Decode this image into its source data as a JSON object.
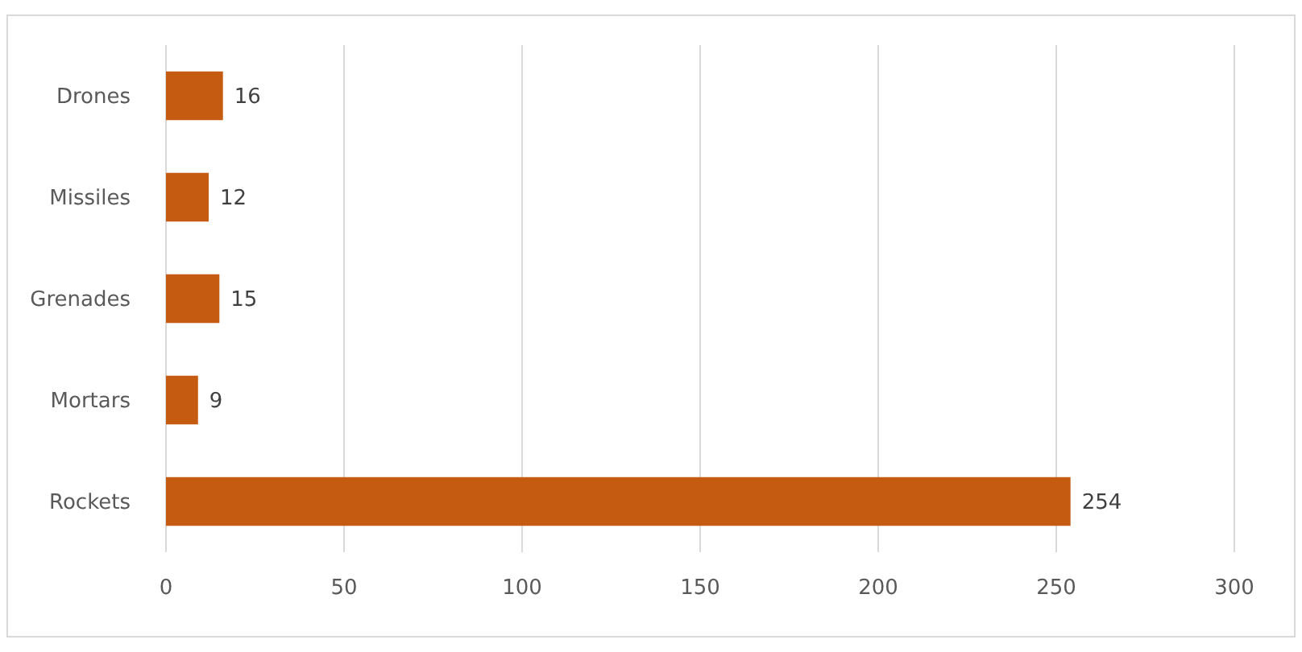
{
  "chart_data": {
    "type": "bar",
    "orientation": "horizontal",
    "categories": [
      "Drones",
      "Missiles",
      "Grenades",
      "Mortars",
      "Rockets"
    ],
    "values": [
      16,
      12,
      15,
      9,
      254
    ],
    "color": "#c55a11",
    "xlim": [
      0,
      300
    ],
    "xticks": [
      0,
      50,
      100,
      150,
      200,
      250,
      300
    ],
    "grid": "x",
    "data_labels": true
  }
}
